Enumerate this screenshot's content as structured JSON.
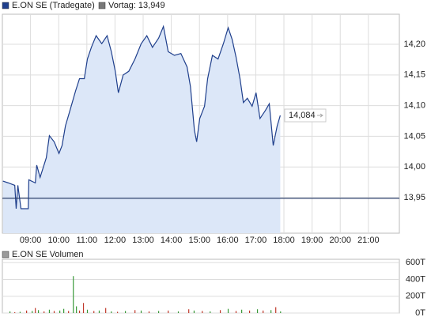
{
  "chart_data": [
    {
      "type": "line",
      "series": [
        {
          "name": "E.ON SE (Tradegate)",
          "color": "#1f3f8c",
          "area_color": "#dce7f8",
          "x": [
            8.02,
            8.21,
            8.44,
            8.49,
            8.55,
            8.66,
            8.92,
            8.94,
            9.17,
            9.22,
            9.34,
            9.56,
            9.67,
            9.84,
            10.01,
            10.12,
            10.24,
            10.4,
            10.6,
            10.74,
            10.91,
            11.02,
            11.16,
            11.33,
            11.53,
            11.72,
            11.87,
            12.01,
            12.12,
            12.29,
            12.49,
            12.71,
            12.93,
            13.13,
            13.33,
            13.55,
            13.72,
            13.89,
            14.11,
            14.34,
            14.56,
            14.68,
            14.82,
            14.9,
            15.01,
            15.18,
            15.29,
            15.46,
            15.66,
            15.85,
            16.02,
            16.16,
            16.3,
            16.44,
            16.56,
            16.7,
            16.87,
            17.01,
            17.15,
            17.34,
            17.48,
            17.62,
            17.76,
            17.87
          ],
          "values": [
            13.977,
            13.974,
            13.97,
            13.932,
            13.97,
            13.932,
            13.932,
            13.979,
            13.974,
            14.003,
            13.983,
            14.015,
            14.051,
            14.041,
            14.022,
            14.035,
            14.067,
            14.092,
            14.124,
            14.144,
            14.144,
            14.176,
            14.195,
            14.214,
            14.201,
            14.214,
            14.188,
            14.156,
            14.121,
            14.15,
            14.156,
            14.176,
            14.201,
            14.214,
            14.195,
            14.21,
            14.229,
            14.188,
            14.182,
            14.185,
            14.163,
            14.131,
            14.06,
            14.041,
            14.079,
            14.099,
            14.144,
            14.182,
            14.176,
            14.201,
            14.227,
            14.208,
            14.179,
            14.144,
            14.105,
            14.112,
            14.099,
            14.121,
            14.079,
            14.092,
            14.103,
            14.035,
            14.067,
            14.084
          ]
        }
      ],
      "last_label": {
        "value": 14.084,
        "label": "14,084"
      },
      "reference": {
        "value": 13.949,
        "label": "Vortag: 13,949",
        "color": "#2b3f6b"
      },
      "xlim": [
        8,
        22.1
      ],
      "xticks": [
        {
          "value": 9,
          "label": "09:00"
        },
        {
          "value": 10,
          "label": "10:00"
        },
        {
          "value": 11,
          "label": "11:00"
        },
        {
          "value": 12,
          "label": "12:00"
        },
        {
          "value": 13,
          "label": "13:00"
        },
        {
          "value": 14,
          "label": "14:00"
        },
        {
          "value": 15,
          "label": "15:00"
        },
        {
          "value": 16,
          "label": "16:00"
        },
        {
          "value": 17,
          "label": "17:00"
        },
        {
          "value": 18,
          "label": "18:00"
        },
        {
          "value": 19,
          "label": "19:00"
        },
        {
          "value": 20,
          "label": "20:00"
        },
        {
          "value": 21,
          "label": "21:00"
        }
      ],
      "ylim": [
        13.892,
        14.249
      ],
      "yticks": [
        {
          "value": 13.95,
          "label": "13,95"
        },
        {
          "value": 14.0,
          "label": "14,00"
        },
        {
          "value": 14.05,
          "label": "14,05"
        },
        {
          "value": 14.1,
          "label": "14,10"
        },
        {
          "value": 14.15,
          "label": "14,15"
        },
        {
          "value": 14.2,
          "label": "14,20"
        }
      ],
      "grid": true
    },
    {
      "type": "bar",
      "series": [
        {
          "name": "E.ON SE Volumen",
          "color": "#9a9a9a",
          "x": [
            8.27,
            8.44,
            8.63,
            8.86,
            9.06,
            9.17,
            9.28,
            9.48,
            9.67,
            9.84,
            10.04,
            10.18,
            10.35,
            10.52,
            10.63,
            10.74,
            10.88,
            11.02,
            11.25,
            11.44,
            11.67,
            11.87,
            12.09,
            12.37,
            12.71,
            12.93,
            13.21,
            13.55,
            13.89,
            14.25,
            14.62,
            14.81,
            15.1,
            15.38,
            15.74,
            16.02,
            16.3,
            16.5,
            16.78,
            17.06,
            17.26,
            17.54,
            17.71,
            17.88
          ],
          "values": [
            20,
            10,
            15,
            30,
            25,
            60,
            35,
            20,
            40,
            25,
            30,
            50,
            25,
            440,
            80,
            30,
            120,
            40,
            25,
            30,
            60,
            20,
            15,
            25,
            35,
            30,
            20,
            25,
            30,
            20,
            45,
            30,
            25,
            20,
            35,
            50,
            25,
            40,
            30,
            45,
            30,
            35,
            70,
            20
          ],
          "colors": [
            "#3a9a3a",
            "#c0392b",
            "#3a9a3a",
            "#c0392b",
            "#3a9a3a",
            "#c0392b",
            "#3a9a3a",
            "#c0392b",
            "#3a9a3a",
            "#c0392b",
            "#3a9a3a",
            "#3a9a3a",
            "#c0392b",
            "#3a9a3a",
            "#3a9a3a",
            "#c0392b",
            "#c0392b",
            "#3a9a3a",
            "#c0392b",
            "#3a9a3a",
            "#c0392b",
            "#3a9a3a",
            "#c0392b",
            "#3a9a3a",
            "#c0392b",
            "#3a9a3a",
            "#c0392b",
            "#3a9a3a",
            "#c0392b",
            "#3a9a3a",
            "#c0392b",
            "#3a9a3a",
            "#c0392b",
            "#3a9a3a",
            "#c0392b",
            "#3a9a3a",
            "#c0392b",
            "#3a9a3a",
            "#c0392b",
            "#3a9a3a",
            "#c0392b",
            "#3a9a3a",
            "#c0392b",
            "#3a9a3a"
          ]
        }
      ],
      "xlim": [
        8,
        22.1
      ],
      "ylim": [
        0,
        640
      ],
      "yticks": [
        {
          "value": 0,
          "label": "0T"
        },
        {
          "value": 200,
          "label": "200T"
        },
        {
          "value": 400,
          "label": "400T"
        },
        {
          "value": 600,
          "label": "600T"
        }
      ],
      "grid": true
    }
  ]
}
